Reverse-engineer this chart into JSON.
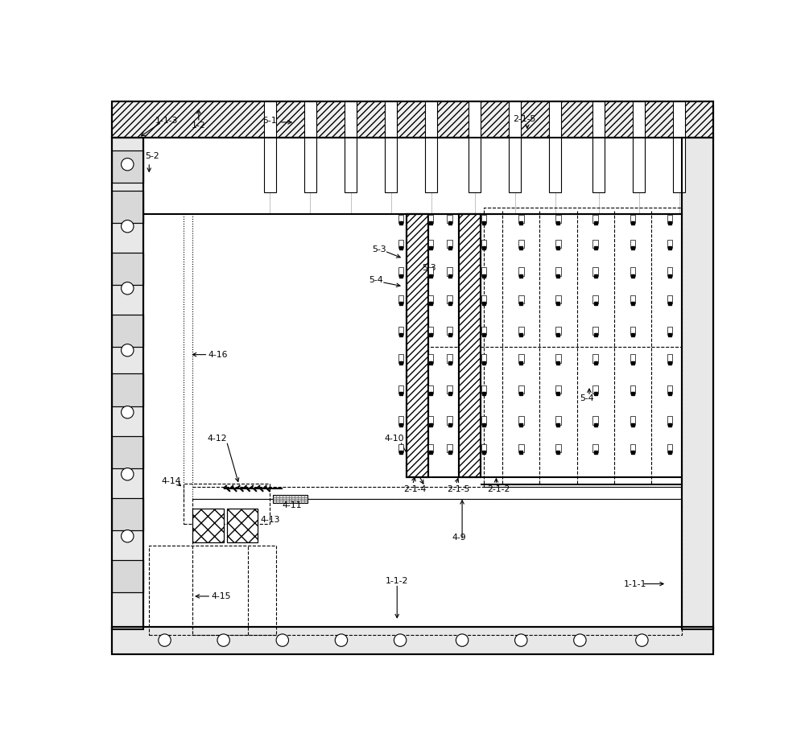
{
  "bg_color": "#ffffff",
  "line_color": "#000000",
  "figsize": [
    10.0,
    9.32
  ],
  "dpi": 100,
  "lw_thick": 2.5,
  "lw_med": 1.5,
  "lw_thin": 0.8,
  "lw_vt": 0.5
}
